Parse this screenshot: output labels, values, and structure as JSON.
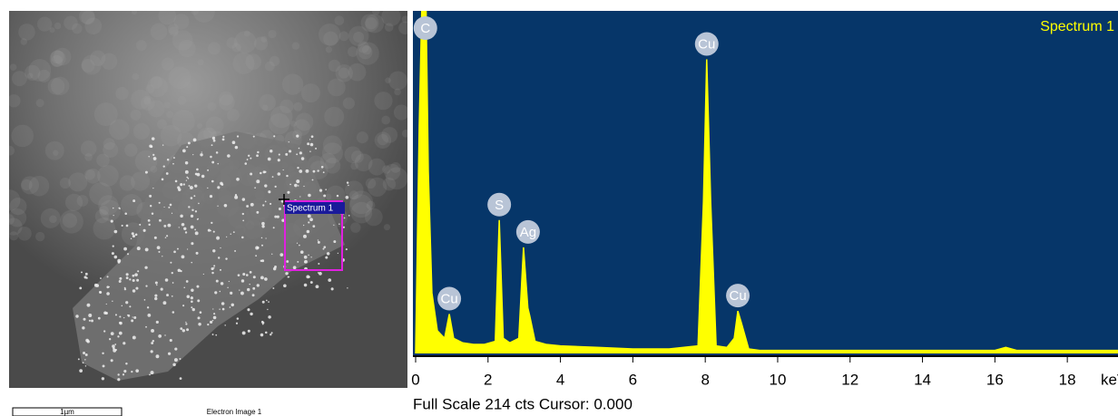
{
  "electron_image": {
    "label": "Electron Image 1",
    "scale_bar": "1µm",
    "region_label": "Spectrum 1"
  },
  "chart_data": {
    "type": "area",
    "title": "Spectrum 1",
    "color": "#ffff00",
    "background": "#063669",
    "x_label": "keV",
    "footer": "Full Scale 214 cts Cursor: 0.000",
    "x": [
      0,
      0.1,
      0.2,
      0.27,
      0.35,
      0.45,
      0.6,
      0.8,
      0.93,
      1.05,
      1.3,
      1.6,
      1.9,
      2.2,
      2.31,
      2.42,
      2.6,
      2.85,
      2.98,
      3.1,
      3.15,
      3.3,
      3.6,
      4,
      5,
      6,
      7,
      7.8,
      7.95,
      8.04,
      8.15,
      8.3,
      8.6,
      8.8,
      8.9,
      9.0,
      9.2,
      9.5,
      10,
      11,
      12,
      13,
      14,
      15,
      16,
      16.3,
      16.6,
      17,
      18,
      19,
      19.4
    ],
    "values": [
      0,
      150,
      260,
      260,
      120,
      40,
      15,
      10,
      26,
      10,
      7,
      6,
      6,
      8,
      88,
      10,
      7,
      10,
      70,
      30,
      25,
      8,
      6,
      5,
      4,
      3,
      3,
      5,
      100,
      194,
      100,
      5,
      4,
      10,
      28,
      20,
      3,
      2,
      2,
      2,
      2,
      2,
      2,
      2,
      2,
      4,
      2,
      2,
      2,
      2,
      2
    ],
    "xlim": [
      0,
      19.4
    ],
    "ylim": [
      0,
      214
    ],
    "xticks": [
      0,
      2,
      4,
      6,
      8,
      10,
      12,
      14,
      16,
      18
    ],
    "peak_labels": [
      {
        "text": "C",
        "x": 0.27
      },
      {
        "text": "Cu",
        "x": 0.93
      },
      {
        "text": "S",
        "x": 2.31
      },
      {
        "text": "Ag",
        "x": 2.98
      },
      {
        "text": "Cu",
        "x": 8.04
      },
      {
        "text": "Cu",
        "x": 8.9
      }
    ]
  }
}
